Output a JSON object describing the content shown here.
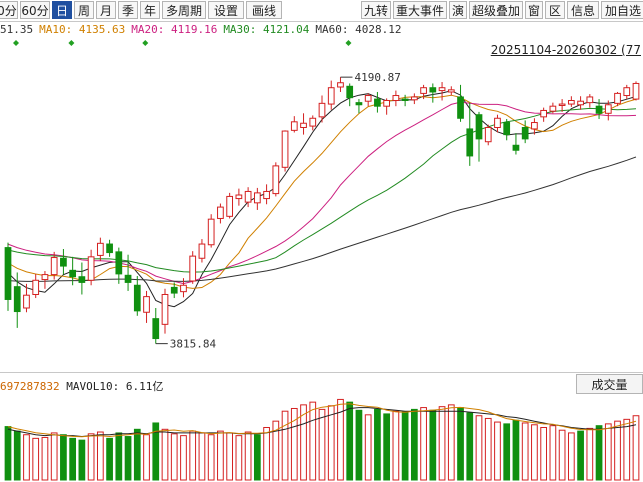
{
  "toolbar": {
    "left_buttons": [
      "0分",
      "60分",
      "日",
      "周",
      "月",
      "季",
      "年",
      "多周期",
      "设置",
      "画线"
    ],
    "active": "日",
    "right_buttons": [
      "九转",
      "重大事件",
      "演",
      "超级叠加",
      "窗",
      "区",
      "信息",
      "加自选"
    ]
  },
  "ma_legend": [
    {
      "label": "51.35",
      "color": "#333333"
    },
    {
      "label": "MA10: 4135.63",
      "color": "#d08000"
    },
    {
      "label": "MA20: 4119.16",
      "color": "#cc2080"
    },
    {
      "label": "MA30: 4121.04",
      "color": "#228b22"
    },
    {
      "label": "MA60: 4028.12",
      "color": "#333333"
    }
  ],
  "range_label": "20251104-20260302 (77",
  "annotations": {
    "high": "4190.87",
    "low": "3815.84"
  },
  "volume": {
    "legend_prefix": "697287832",
    "mavol_label": "MAVOL10: 6.11亿",
    "tab_label": "成交量"
  },
  "colors": {
    "up": "#d42020",
    "down": "#109010",
    "ma10": "#d08000",
    "ma20": "#cc2080",
    "ma30": "#228b22",
    "ma60": "#333333",
    "ma5": "#222222"
  },
  "chart_data": {
    "type": "candlestick",
    "note_units": "index points",
    "ohlc": [
      [
        3951,
        3958,
        3862,
        3878
      ],
      [
        3896,
        3916,
        3838,
        3861
      ],
      [
        3866,
        3900,
        3860,
        3884
      ],
      [
        3885,
        3914,
        3880,
        3905
      ],
      [
        3906,
        3918,
        3893,
        3913
      ],
      [
        3913,
        3945,
        3906,
        3937
      ],
      [
        3936,
        3949,
        3913,
        3925
      ],
      [
        3919,
        3938,
        3898,
        3910
      ],
      [
        3910,
        3930,
        3885,
        3902
      ],
      [
        3905,
        3948,
        3898,
        3938
      ],
      [
        3940,
        3965,
        3932,
        3957
      ],
      [
        3956,
        3962,
        3938,
        3944
      ],
      [
        3945,
        3951,
        3900,
        3914
      ],
      [
        3912,
        3941,
        3890,
        3902
      ],
      [
        3898,
        3911,
        3855,
        3862
      ],
      [
        3860,
        3890,
        3845,
        3882
      ],
      [
        3851,
        3866,
        3815.84,
        3823
      ],
      [
        3843,
        3893,
        3830,
        3885
      ],
      [
        3895,
        3902,
        3880,
        3887
      ],
      [
        3889,
        3908,
        3881,
        3898
      ],
      [
        3904,
        3946,
        3900,
        3939
      ],
      [
        3936,
        3963,
        3930,
        3956
      ],
      [
        3955,
        3998,
        3951,
        3991
      ],
      [
        3992,
        4013,
        3985,
        4008
      ],
      [
        3995,
        4028,
        3992,
        4023
      ],
      [
        4020,
        4034,
        4010,
        4025
      ],
      [
        4015,
        4036,
        4008,
        4030
      ],
      [
        4014,
        4035,
        4004,
        4028
      ],
      [
        4020,
        4040,
        4012,
        4030
      ],
      [
        4027,
        4071,
        4023,
        4066
      ],
      [
        4064,
        4116,
        4058,
        4115
      ],
      [
        4116,
        4136,
        4113,
        4128
      ],
      [
        4120,
        4140,
        4110,
        4126
      ],
      [
        4122,
        4137,
        4116,
        4133
      ],
      [
        4135,
        4165,
        4127,
        4154
      ],
      [
        4153,
        4186,
        4145,
        4176
      ],
      [
        4177,
        4190.87,
        4170,
        4183
      ],
      [
        4178,
        4182,
        4150,
        4162
      ],
      [
        4155,
        4160,
        4140,
        4152
      ],
      [
        4157,
        4168,
        4150,
        4165
      ],
      [
        4160,
        4170,
        4141,
        4150
      ],
      [
        4150,
        4161,
        4138,
        4158
      ],
      [
        4158,
        4172,
        4150,
        4165
      ],
      [
        4160,
        4166,
        4150,
        4158
      ],
      [
        4159,
        4168,
        4153,
        4163
      ],
      [
        4168,
        4180,
        4160,
        4176
      ],
      [
        4176,
        4182,
        4155,
        4170
      ],
      [
        4172,
        4184,
        4158,
        4176
      ],
      [
        4170,
        4178,
        4165,
        4173
      ],
      [
        4163,
        4180,
        4128,
        4133
      ],
      [
        4118,
        4155,
        4066,
        4080
      ],
      [
        4138,
        4142,
        4072,
        4104
      ],
      [
        4100,
        4124,
        4095,
        4120
      ],
      [
        4120,
        4138,
        4113,
        4133
      ],
      [
        4127,
        4132,
        4102,
        4110
      ],
      [
        4095,
        4112,
        4082,
        4088
      ],
      [
        4120,
        4130,
        4098,
        4104
      ],
      [
        4118,
        4133,
        4110,
        4127
      ],
      [
        4135,
        4148,
        4128,
        4144
      ],
      [
        4143,
        4155,
        4140,
        4150
      ],
      [
        4151,
        4160,
        4142,
        4153
      ],
      [
        4153,
        4164,
        4149,
        4158
      ],
      [
        4152,
        4164,
        4145,
        4157
      ],
      [
        4155,
        4167,
        4148,
        4163
      ],
      [
        4150,
        4160,
        4132,
        4140
      ],
      [
        4140,
        4158,
        4130,
        4152
      ],
      [
        4154,
        4170,
        4150,
        4168
      ],
      [
        4165,
        4180,
        4160,
        4176
      ],
      [
        4160,
        4185,
        4158,
        4182
      ]
    ],
    "volume": [
      [
        5.9,
        0
      ],
      [
        5.4,
        0
      ],
      [
        5.0,
        1
      ],
      [
        4.6,
        1
      ],
      [
        4.7,
        1
      ],
      [
        5.2,
        1
      ],
      [
        5.0,
        0
      ],
      [
        4.6,
        0
      ],
      [
        4.4,
        0
      ],
      [
        5.1,
        1
      ],
      [
        5.3,
        1
      ],
      [
        4.6,
        0
      ],
      [
        5.2,
        0
      ],
      [
        4.8,
        0
      ],
      [
        5.6,
        0
      ],
      [
        5.0,
        1
      ],
      [
        6.3,
        0
      ],
      [
        5.6,
        1
      ],
      [
        5.1,
        1
      ],
      [
        4.9,
        1
      ],
      [
        5.4,
        1
      ],
      [
        5.2,
        1
      ],
      [
        5.0,
        1
      ],
      [
        5.4,
        1
      ],
      [
        5.2,
        1
      ],
      [
        4.9,
        1
      ],
      [
        5.3,
        1
      ],
      [
        5.0,
        0
      ],
      [
        5.8,
        1
      ],
      [
        6.5,
        1
      ],
      [
        7.6,
        1
      ],
      [
        7.9,
        1
      ],
      [
        8.3,
        1
      ],
      [
        8.6,
        1
      ],
      [
        7.8,
        1
      ],
      [
        8.2,
        1
      ],
      [
        8.9,
        1
      ],
      [
        8.6,
        0
      ],
      [
        7.7,
        0
      ],
      [
        7.2,
        1
      ],
      [
        7.8,
        0
      ],
      [
        7.3,
        0
      ],
      [
        7.6,
        1
      ],
      [
        7.5,
        0
      ],
      [
        7.8,
        0
      ],
      [
        8.0,
        1
      ],
      [
        7.7,
        0
      ],
      [
        8.1,
        1
      ],
      [
        8.3,
        1
      ],
      [
        8.0,
        0
      ],
      [
        7.4,
        0
      ],
      [
        7.1,
        1
      ],
      [
        6.8,
        1
      ],
      [
        6.4,
        1
      ],
      [
        6.2,
        0
      ],
      [
        6.6,
        0
      ],
      [
        6.3,
        1
      ],
      [
        6.1,
        1
      ],
      [
        5.8,
        1
      ],
      [
        6.0,
        1
      ],
      [
        5.5,
        1
      ],
      [
        5.2,
        1
      ],
      [
        5.4,
        0
      ],
      [
        5.7,
        1
      ],
      [
        6.0,
        0
      ],
      [
        6.2,
        1
      ],
      [
        6.5,
        1
      ],
      [
        6.7,
        1
      ],
      [
        7.1,
        1
      ]
    ],
    "mavol": [
      5.6,
      5.4,
      5.2,
      5.0,
      4.9,
      5.0,
      4.9,
      4.9,
      4.8,
      4.9,
      5.0,
      5.0,
      5.1,
      5.1,
      5.2,
      5.1,
      5.3,
      5.3,
      5.2,
      5.2,
      5.2,
      5.2,
      5.2,
      5.2,
      5.2,
      5.1,
      5.1,
      5.1,
      5.2,
      5.4,
      5.6,
      5.9,
      6.2,
      6.6,
      6.9,
      7.2,
      7.5,
      7.9,
      8.0,
      8.0,
      7.9,
      7.8,
      7.7,
      7.6,
      7.6,
      7.6,
      7.6,
      7.6,
      7.6,
      7.6,
      7.5,
      7.4,
      7.3,
      7.2,
      7.0,
      6.9,
      6.7,
      6.5,
      6.3,
      6.1,
      6.0,
      5.8,
      5.7,
      5.6,
      5.6,
      5.7,
      5.8,
      5.9,
      6.11
    ],
    "ylim": [
      3790,
      4215
    ],
    "vol_ylim": [
      0,
      9.5
    ]
  }
}
